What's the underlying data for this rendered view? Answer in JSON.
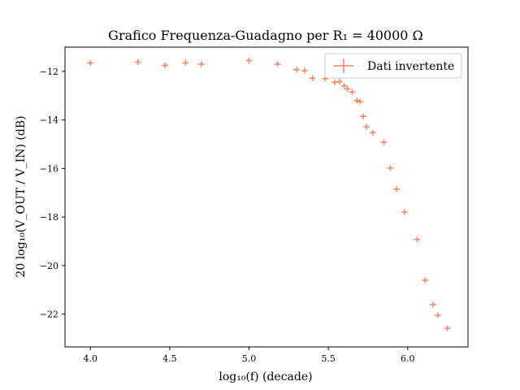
{
  "chart_data": {
    "type": "scatter",
    "title": "Grafico Frequenza-Guadagno per R₁ = 40000 Ω",
    "xlabel": "log₁₀(f) (decade)",
    "ylabel": "20 log₁₀(V_OUT / V_IN) (dB)",
    "xlim": [
      3.84,
      6.38
    ],
    "ylim": [
      -23.35,
      -11.0
    ],
    "x_ticks": [
      4.0,
      4.5,
      5.0,
      5.5,
      6.0
    ],
    "x_tick_labels": [
      "4.0",
      "4.5",
      "5.0",
      "5.5",
      "6.0"
    ],
    "y_ticks": [
      -22,
      -20,
      -18,
      -16,
      -14,
      -12
    ],
    "y_tick_labels": [
      "−22",
      "−20",
      "−18",
      "−16",
      "−14",
      "−12"
    ],
    "grid": false,
    "legend_position": "top-right",
    "series": [
      {
        "name": "Dati invertente",
        "color": "#F4845F",
        "marker": "errorbar-cross",
        "points": [
          {
            "x": 4.0,
            "y": -11.65
          },
          {
            "x": 4.3,
            "y": -11.62
          },
          {
            "x": 4.47,
            "y": -11.75
          },
          {
            "x": 4.6,
            "y": -11.65
          },
          {
            "x": 4.7,
            "y": -11.7
          },
          {
            "x": 5.0,
            "y": -11.55
          },
          {
            "x": 5.18,
            "y": -11.7
          },
          {
            "x": 5.3,
            "y": -11.93
          },
          {
            "x": 5.35,
            "y": -11.97
          },
          {
            "x": 5.4,
            "y": -12.28
          },
          {
            "x": 5.48,
            "y": -12.3
          },
          {
            "x": 5.54,
            "y": -12.45
          },
          {
            "x": 5.57,
            "y": -12.42
          },
          {
            "x": 5.6,
            "y": -12.6
          },
          {
            "x": 5.62,
            "y": -12.72
          },
          {
            "x": 5.65,
            "y": -12.85
          },
          {
            "x": 5.68,
            "y": -13.2
          },
          {
            "x": 5.7,
            "y": -13.25
          },
          {
            "x": 5.72,
            "y": -13.85
          },
          {
            "x": 5.74,
            "y": -14.28
          },
          {
            "x": 5.78,
            "y": -14.52
          },
          {
            "x": 5.85,
            "y": -14.92
          },
          {
            "x": 5.89,
            "y": -15.98
          },
          {
            "x": 5.93,
            "y": -16.85
          },
          {
            "x": 5.98,
            "y": -17.8
          },
          {
            "x": 6.06,
            "y": -18.92
          },
          {
            "x": 6.11,
            "y": -20.6
          },
          {
            "x": 6.16,
            "y": -21.6
          },
          {
            "x": 6.19,
            "y": -22.05
          },
          {
            "x": 6.25,
            "y": -22.58
          }
        ],
        "x_err": 0.02,
        "y_err": 0.12
      }
    ]
  }
}
